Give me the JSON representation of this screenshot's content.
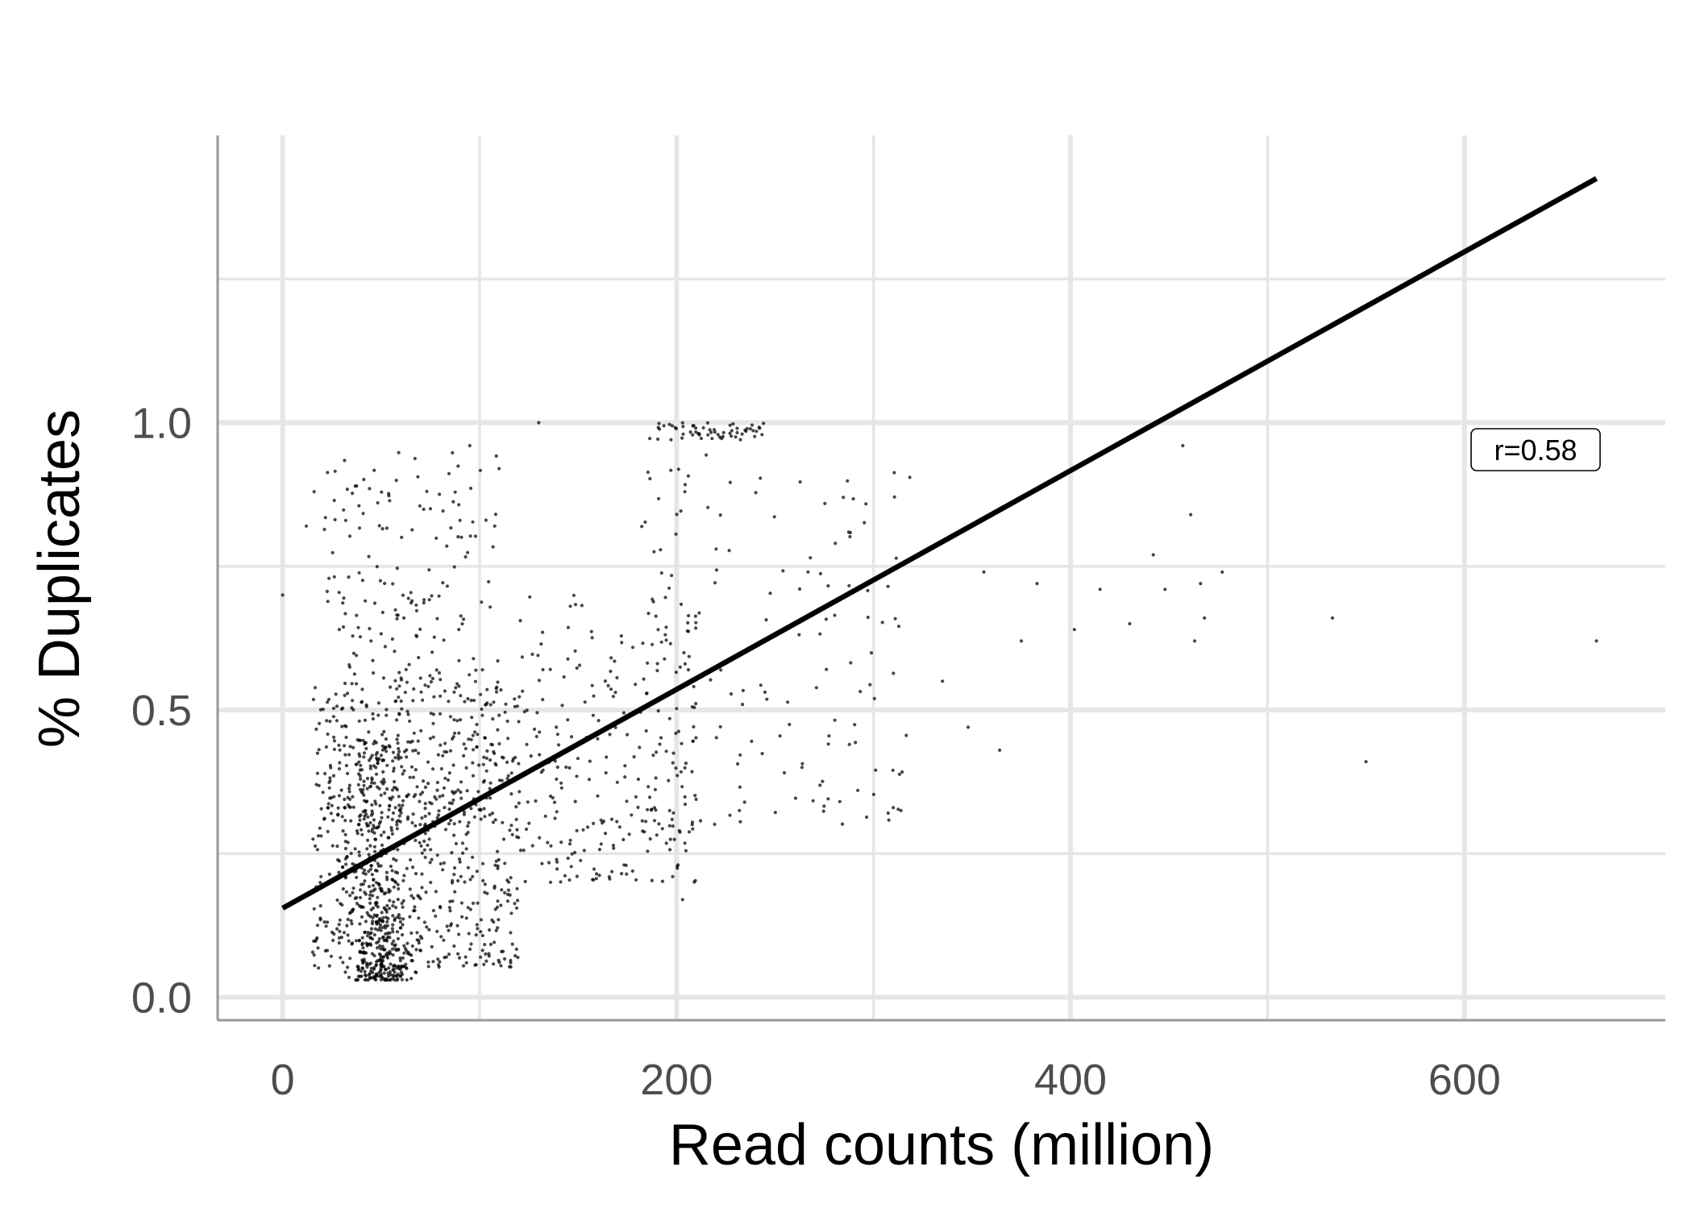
{
  "chart_data": {
    "type": "scatter",
    "title": "",
    "xlabel": "Read counts (million)",
    "ylabel": "% Duplicates",
    "xlim": [
      -33,
      702
    ],
    "ylim": [
      -0.04,
      1.5
    ],
    "x_ticks": [
      0,
      200,
      400,
      600
    ],
    "x_tick_labels": [
      "0",
      "200",
      "400",
      "600"
    ],
    "y_ticks": [
      0.0,
      0.5,
      1.0
    ],
    "y_tick_labels": [
      "0.0",
      "0.5",
      "1.0"
    ],
    "x_minor_ticks": [
      100,
      300,
      500
    ],
    "y_minor_ticks": [
      0.25,
      0.75,
      1.25
    ],
    "grid": true,
    "point_color": "#000000",
    "line_color": "#000000",
    "regression_line": {
      "x": [
        0,
        667
      ],
      "y": [
        0.155,
        1.425
      ]
    },
    "annotation": {
      "text": "r=0.58",
      "x": 635,
      "y": 0.955
    },
    "clusters": [
      {
        "x": [
          35,
          65
        ],
        "y": [
          0.03,
          0.45
        ],
        "n": 420,
        "shape": "gaussian"
      },
      {
        "x": [
          15,
          120
        ],
        "y": [
          0.05,
          0.55
        ],
        "n": 650,
        "shape": "uniform"
      },
      {
        "x": [
          20,
          110
        ],
        "y": [
          0.3,
          0.95
        ],
        "n": 300,
        "shape": "uniform"
      },
      {
        "x": [
          120,
          210
        ],
        "y": [
          0.2,
          0.7
        ],
        "n": 250,
        "shape": "uniform"
      },
      {
        "x": [
          180,
          320
        ],
        "y": [
          0.3,
          0.95
        ],
        "n": 150,
        "shape": "uniform"
      },
      {
        "x": [
          185,
          245
        ],
        "y": [
          0.97,
          1.0
        ],
        "n": 60,
        "shape": "band"
      }
    ],
    "points": [
      {
        "x": 0,
        "y": 0.7
      },
      {
        "x": 16,
        "y": 0.88
      },
      {
        "x": 12,
        "y": 0.82
      },
      {
        "x": 95,
        "y": 0.96
      },
      {
        "x": 130,
        "y": 1.0
      },
      {
        "x": 198,
        "y": 0.21
      },
      {
        "x": 203,
        "y": 0.17
      },
      {
        "x": 292,
        "y": 0.36
      },
      {
        "x": 310,
        "y": 0.33
      },
      {
        "x": 335,
        "y": 0.55
      },
      {
        "x": 348,
        "y": 0.47
      },
      {
        "x": 356,
        "y": 0.74
      },
      {
        "x": 364,
        "y": 0.43
      },
      {
        "x": 375,
        "y": 0.62
      },
      {
        "x": 383,
        "y": 0.72
      },
      {
        "x": 402,
        "y": 0.64
      },
      {
        "x": 415,
        "y": 0.71
      },
      {
        "x": 430,
        "y": 0.65
      },
      {
        "x": 442,
        "y": 0.77
      },
      {
        "x": 448,
        "y": 0.71
      },
      {
        "x": 457,
        "y": 0.96
      },
      {
        "x": 461,
        "y": 0.84
      },
      {
        "x": 463,
        "y": 0.62
      },
      {
        "x": 466,
        "y": 0.72
      },
      {
        "x": 468,
        "y": 0.66
      },
      {
        "x": 477,
        "y": 0.74
      },
      {
        "x": 533,
        "y": 0.66
      },
      {
        "x": 550,
        "y": 0.41
      },
      {
        "x": 667,
        "y": 0.62
      }
    ]
  }
}
